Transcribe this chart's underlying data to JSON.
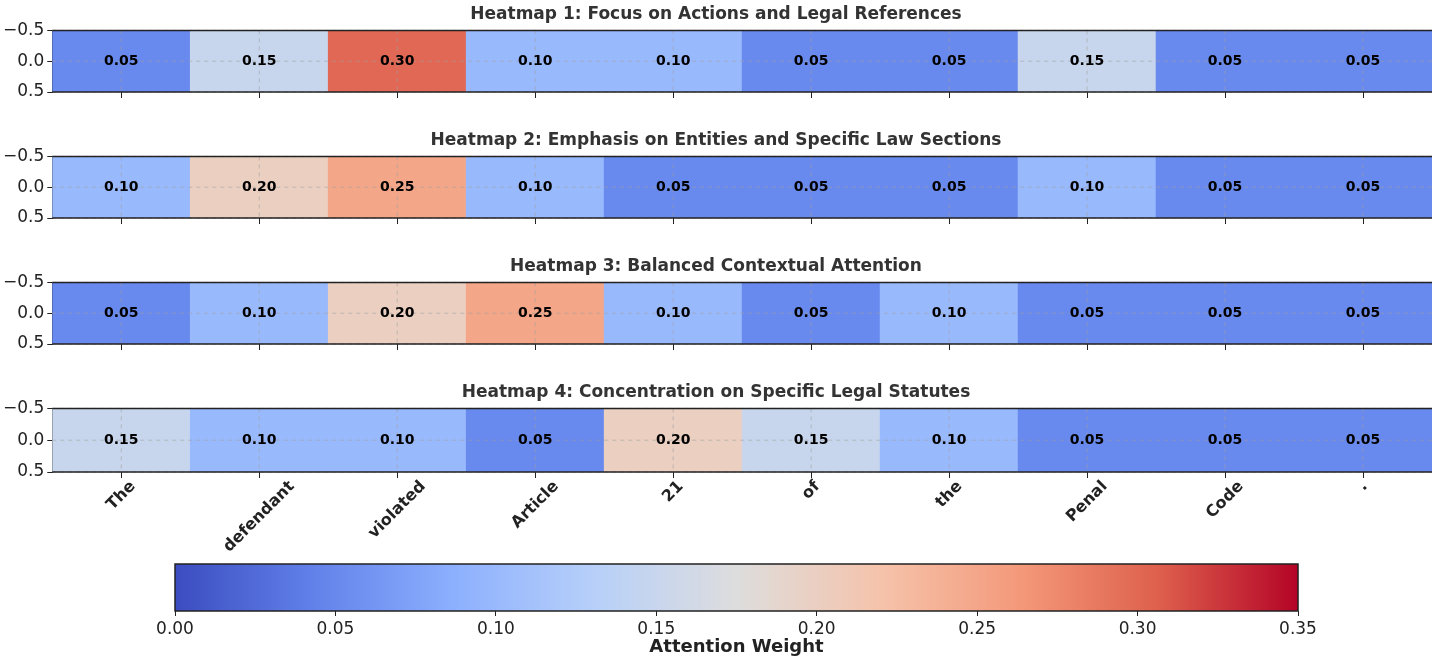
{
  "chart_data": [
    {
      "type": "heatmap",
      "title": "Heatmap 1: Focus on Actions and Legal References",
      "categories": [
        null,
        null,
        null,
        null,
        null,
        null,
        null,
        null,
        null,
        null
      ],
      "cells": [
        [
          0.05,
          0.15,
          0.3,
          0.1,
          0.1,
          0.05,
          0.05,
          0.15,
          0.05,
          0.05
        ]
      ],
      "cell_labels": [
        [
          "0.05",
          "0.15",
          "0.30",
          "0.10",
          "0.10",
          "0.05",
          "0.05",
          "0.15",
          "0.05",
          "0.05"
        ]
      ],
      "ylim": [
        0.5,
        -0.5
      ],
      "yticks": [
        {
          "value": -0.5,
          "label": "−0.5"
        },
        {
          "value": 0,
          "label": "0.0"
        },
        {
          "value": 0.5,
          "label": "0.5"
        }
      ],
      "grid": true,
      "tick_labels": "y"
    },
    {
      "type": "heatmap",
      "title": "Heatmap 2: Emphasis on Entities and Specific Law Sections",
      "categories": [
        null,
        null,
        null,
        null,
        null,
        null,
        null,
        null,
        null,
        null
      ],
      "cells": [
        [
          0.1,
          0.2,
          0.25,
          0.1,
          0.05,
          0.05,
          0.05,
          0.1,
          0.05,
          0.05
        ]
      ],
      "cell_labels": [
        [
          "0.10",
          "0.20",
          "0.25",
          "0.10",
          "0.05",
          "0.05",
          "0.05",
          "0.10",
          "0.05",
          "0.05"
        ]
      ],
      "ylim": [
        0.5,
        -0.5
      ],
      "yticks": [
        {
          "value": -0.5,
          "label": "−0.5"
        },
        {
          "value": 0,
          "label": "0.0"
        },
        {
          "value": 0.5,
          "label": "0.5"
        }
      ],
      "grid": true,
      "tick_labels": "y"
    },
    {
      "type": "heatmap",
      "title": "Heatmap 3: Balanced Contextual Attention",
      "categories": [
        null,
        null,
        null,
        null,
        null,
        null,
        null,
        null,
        null,
        null
      ],
      "cells": [
        [
          0.05,
          0.1,
          0.2,
          0.25,
          0.1,
          0.05,
          0.1,
          0.05,
          0.05,
          0.05
        ]
      ],
      "cell_labels": [
        [
          "0.05",
          "0.10",
          "0.20",
          "0.25",
          "0.10",
          "0.05",
          "0.10",
          "0.05",
          "0.05",
          "0.05"
        ]
      ],
      "ylim": [
        0.5,
        -0.5
      ],
      "yticks": [
        {
          "value": -0.5,
          "label": "−0.5"
        },
        {
          "value": 0,
          "label": "0.0"
        },
        {
          "value": 0.5,
          "label": "0.5"
        }
      ],
      "grid": true,
      "tick_labels": "y"
    },
    {
      "type": "heatmap",
      "title": "Heatmap 4: Concentration on Specific Legal Statutes",
      "categories": [
        "The",
        "defendant",
        "violated",
        "Article",
        "21",
        "of",
        "the",
        "Penal",
        "Code",
        "."
      ],
      "cells": [
        [
          0.15,
          0.1,
          0.1,
          0.05,
          0.2,
          0.15,
          0.1,
          0.05,
          0.05,
          0.05
        ]
      ],
      "cell_labels": [
        [
          "0.15",
          "0.10",
          "0.10",
          "0.05",
          "0.20",
          "0.15",
          "0.10",
          "0.05",
          "0.05",
          "0.05"
        ]
      ],
      "clim": [
        0,
        0.35
      ],
      "cticks": [
        {
          "value": 0,
          "label": "0.00"
        },
        {
          "value": 0.05,
          "label": "0.05"
        },
        {
          "value": 0.1,
          "label": "0.10"
        },
        {
          "value": 0.15,
          "label": "0.15"
        },
        {
          "value": 0.2,
          "label": "0.20"
        },
        {
          "value": 0.25,
          "label": "0.25"
        },
        {
          "value": 0.3,
          "label": "0.30"
        },
        {
          "value": 0.35,
          "label": "0.35"
        }
      ],
      "clabel": "Attention Weight",
      "ylim": [
        0.5,
        -0.5
      ],
      "yticks": [
        {
          "value": -0.5,
          "label": "−0.5"
        },
        {
          "value": 0,
          "label": "0.0"
        },
        {
          "value": 0.5,
          "label": "0.5"
        }
      ],
      "grid": true
    }
  ]
}
